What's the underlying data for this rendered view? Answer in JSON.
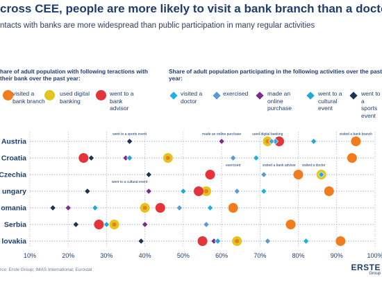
{
  "title": "cross CEE, people are more likely to visit a bank branch than a doctor",
  "subtitle": "ntacts with banks are more widespread than public participation in many regular activities",
  "group_banking": "hare of adult population with following teractions with their bank over the past year:",
  "group_activities": "Share of adult population participating in the following activities over the past year:",
  "legend": [
    {
      "key": "branch",
      "label": "visited a bank branch",
      "shape": "circle",
      "color": "#f07c1e"
    },
    {
      "key": "digital",
      "label": "used digital banking",
      "shape": "circle",
      "color": "#e3c520"
    },
    {
      "key": "advisor",
      "label": "went to a bank advisor",
      "shape": "circle",
      "color": "#e3343a"
    },
    {
      "key": "doctor",
      "label": "visited a doctor",
      "shape": "diamond",
      "color": "#21b0e3"
    },
    {
      "key": "exercised",
      "label": "exercised",
      "shape": "diamond",
      "color": "#5b9bd5"
    },
    {
      "key": "purchase",
      "label": "made an online purchase",
      "shape": "diamond",
      "color": "#7b2d8e"
    },
    {
      "key": "cultural",
      "label": "went to a cultural event",
      "shape": "diamond",
      "color": "#1fa8d8"
    },
    {
      "key": "sports",
      "label": "went to a sports event",
      "shape": "diamond",
      "color": "#1b3556"
    }
  ],
  "chart_data": {
    "type": "scatter",
    "title": "cross CEE, people are more likely to visit a bank branch than a doctor",
    "xlim": [
      10,
      100
    ],
    "x_ticks": [
      "10%",
      "20%",
      "30%",
      "40%",
      "50%",
      "60%",
      "70%",
      "80%",
      "90%",
      "100%"
    ],
    "categories": [
      "Austria",
      "Croatia",
      "Czechia",
      "ungary",
      "omania",
      "Serbia",
      "lovakia"
    ],
    "series": [
      {
        "name": "visited a bank branch",
        "values": [
          95,
          94,
          80,
          88,
          63,
          78,
          91
        ]
      },
      {
        "name": "used digital banking",
        "values": [
          72,
          46,
          86,
          56,
          40,
          32,
          64
        ]
      },
      {
        "name": "went to a bank advisor",
        "values": [
          75,
          24,
          57,
          54,
          44,
          28,
          55
        ]
      },
      {
        "name": "visited a doctor",
        "values": [
          74,
          69,
          71,
          71,
          57,
          56,
          82
        ]
      },
      {
        "name": "exercised",
        "values": [
          73,
          63,
          71,
          64,
          49,
          56,
          72
        ]
      },
      {
        "name": "made an online purchase",
        "values": [
          60,
          35,
          41,
          41,
          20,
          40,
          58
        ]
      },
      {
        "name": "went to a cultural event",
        "values": [
          84,
          36,
          86,
          50,
          27,
          30,
          59
        ]
      },
      {
        "name": "went to a sports event",
        "values": [
          36,
          26,
          41,
          25,
          16,
          22,
          39
        ]
      }
    ],
    "grid": true,
    "annotations": [
      {
        "text": "went to a sports event",
        "x": 36,
        "row": "Austria"
      },
      {
        "text": "made an online purchase",
        "x": 60,
        "row": "Austria"
      },
      {
        "text": "used digital banking",
        "x": 72,
        "row": "Austria"
      },
      {
        "text": "visited a bank branch",
        "x": 95,
        "row": "Austria"
      },
      {
        "text": "exercised",
        "x": 63,
        "row": "Croatia"
      },
      {
        "text": "visited a bank advisor",
        "x": 75,
        "row": "Croatia"
      },
      {
        "text": "visited a doctor",
        "x": 84,
        "row": "Croatia"
      },
      {
        "text": "went to a cultural event",
        "x": 36,
        "row": "Czechia"
      }
    ]
  },
  "source": "rce: Erste Group; IMAS International; Eurostat",
  "logo": {
    "name": "ERSTE",
    "sub": "Group"
  }
}
